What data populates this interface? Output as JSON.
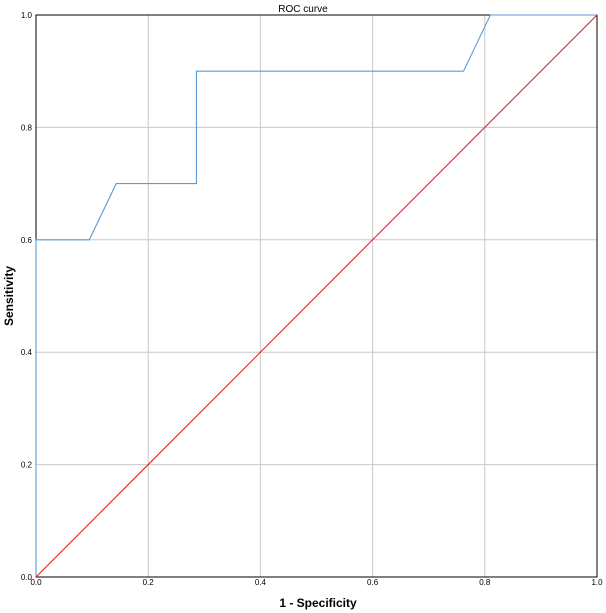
{
  "chart_data": {
    "type": "line",
    "title": "ROC curve",
    "xlabel": "1 - Specificity",
    "ylabel": "Sensitivity",
    "xlim": [
      0,
      1
    ],
    "ylim": [
      0,
      1
    ],
    "xticks": [
      "0.0",
      "0.2",
      "0.4",
      "0.6",
      "0.8",
      "1.0"
    ],
    "yticks": [
      "0.0",
      "0.2",
      "0.4",
      "0.6",
      "0.8",
      "1.0"
    ],
    "grid": true,
    "series": [
      {
        "color": "#5b9bd5",
        "x": [
          0.0,
          0.0,
          0.095,
          0.143,
          0.286,
          0.286,
          0.762,
          0.81,
          1.0
        ],
        "y": [
          0.0,
          0.6,
          0.6,
          0.7,
          0.7,
          0.9,
          0.9,
          1.0,
          1.0
        ]
      },
      {
        "color": "#e8202a",
        "x": [
          0.0,
          1.0
        ],
        "y": [
          0.0,
          1.0
        ]
      }
    ]
  }
}
